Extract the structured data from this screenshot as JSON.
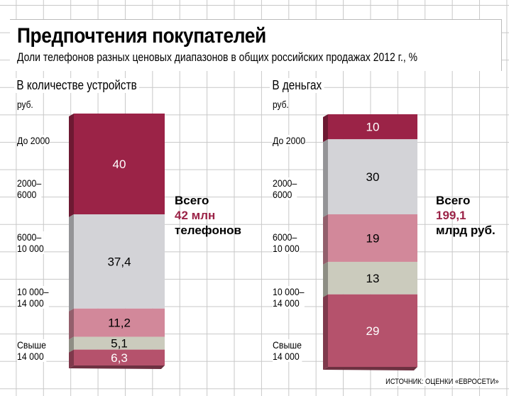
{
  "title": "Предпочтения покупателей",
  "subtitle": "Доли телефонов разных ценовых диапазонов в общих российских продажах 2012 г., %",
  "source": "ИСТОЧНИК: ОЦЕНКИ «ЕВРОСЕТИ»",
  "unit": "руб.",
  "categories": [
    "До 2000",
    "2000–\n6000",
    "6000–\n10 000",
    "10 000–\n14 000",
    "Свыше\n14 000"
  ],
  "colors": [
    "#9b2347",
    "#d3d3d7",
    "#d2889a",
    "#cbcbbd",
    "#b5526c"
  ],
  "text_colors": [
    "#ffffff",
    "#000000",
    "#000000",
    "#000000",
    "#ffffff"
  ],
  "chart_data": [
    {
      "type": "bar",
      "stacked": true,
      "title": "В количестве устройств",
      "unit": "руб.",
      "categories": [
        "До 2000",
        "2000–6000",
        "6000–10 000",
        "10 000–14 000",
        "Свыше 14 000"
      ],
      "values": [
        40,
        37.4,
        11.2,
        5.1,
        6.3
      ],
      "labels": [
        "40",
        "37,4",
        "11,2",
        "5,1",
        "6,3"
      ],
      "total": {
        "line1": "Всего",
        "value": "42 млн",
        "line3": "телефонов"
      }
    },
    {
      "type": "bar",
      "stacked": true,
      "title": "В деньгах",
      "unit": "руб.",
      "categories": [
        "До 2000",
        "2000–6000",
        "6000–10 000",
        "10 000–14 000",
        "Свыше 14 000"
      ],
      "values": [
        10,
        30,
        19,
        13,
        29
      ],
      "labels": [
        "10",
        "30",
        "19",
        "13",
        "29"
      ],
      "total": {
        "line1": "Всего",
        "value": "199,1",
        "line3": "млрд руб."
      }
    }
  ]
}
